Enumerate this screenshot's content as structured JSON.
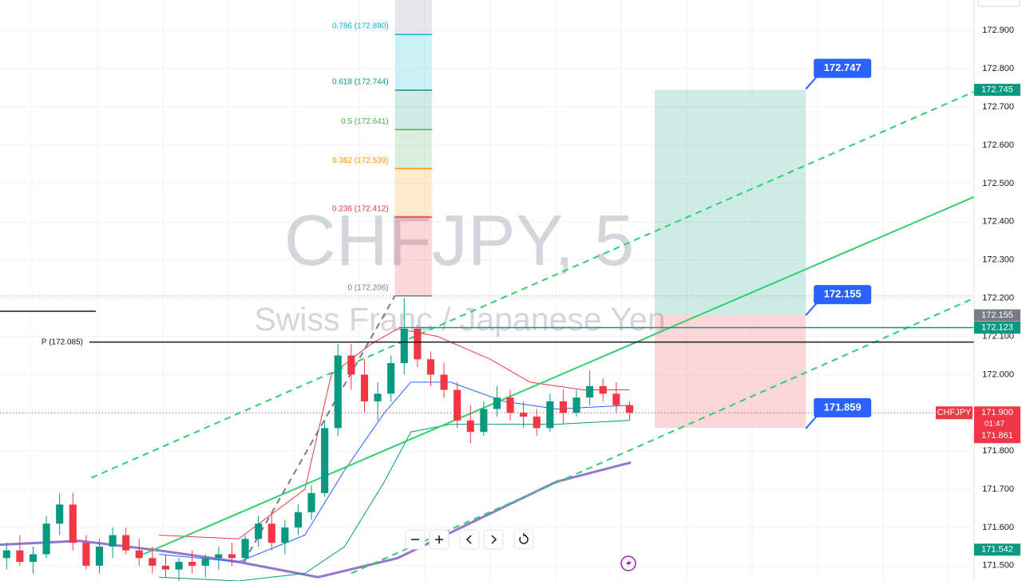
{
  "chart_data": {
    "type": "candlestick",
    "watermark": "CHFJPY, 5",
    "watermark_subtitle": "Swiss Franc / Japanese Yen",
    "symbol": "CHFJPY",
    "countdown": "01:47",
    "ylim": [
      171.46,
      172.98
    ],
    "xlim": [
      0,
      73.5
    ],
    "grid": true,
    "yticks": [
      {
        "value": 171.5,
        "label": "171.500"
      },
      {
        "value": 171.6,
        "label": "171.600"
      },
      {
        "value": 171.7,
        "label": "171.700"
      },
      {
        "value": 171.8,
        "label": "171.800"
      },
      {
        "value": 171.9,
        "label": "171.900"
      },
      {
        "value": 172.0,
        "label": "172.000"
      },
      {
        "value": 172.1,
        "label": "172.100"
      },
      {
        "value": 172.2,
        "label": "172.200"
      },
      {
        "value": 172.3,
        "label": "172.300"
      },
      {
        "value": 172.4,
        "label": "172.400"
      },
      {
        "value": 172.5,
        "label": "172.500"
      },
      {
        "value": 172.6,
        "label": "172.600"
      },
      {
        "value": 172.7,
        "label": "172.700"
      },
      {
        "value": 172.8,
        "label": "172.800"
      },
      {
        "value": 172.9,
        "label": "172.900"
      }
    ],
    "up_color": "#089981",
    "down_color": "#f23645",
    "open": [
      171.52,
      171.54,
      171.51,
      171.53,
      171.61,
      171.66,
      171.56,
      171.5,
      171.55,
      171.58,
      171.54,
      171.52,
      171.5,
      171.49,
      171.51,
      171.5,
      171.52,
      171.53,
      171.52,
      171.57,
      171.61,
      171.56,
      171.6,
      171.64,
      171.69,
      171.86,
      172.05,
      172.0,
      171.93,
      171.95,
      172.03,
      172.12,
      172.04,
      172.0,
      171.96,
      171.88,
      171.85,
      171.91,
      171.94,
      171.9,
      171.89,
      171.86,
      171.93,
      171.9,
      171.94,
      171.97,
      171.95,
      171.92
    ],
    "high": [
      171.56,
      171.58,
      171.55,
      171.63,
      171.69,
      171.69,
      171.58,
      171.57,
      171.6,
      171.6,
      171.57,
      171.55,
      171.53,
      171.52,
      171.54,
      171.53,
      171.55,
      171.56,
      171.58,
      171.63,
      171.64,
      171.62,
      171.66,
      171.71,
      171.88,
      172.08,
      172.08,
      172.04,
      171.98,
      172.05,
      172.2,
      172.13,
      172.06,
      172.03,
      171.98,
      171.92,
      171.93,
      171.97,
      171.96,
      171.93,
      171.91,
      171.95,
      171.96,
      171.96,
      172.01,
      171.99,
      171.98,
      171.93
    ],
    "low": [
      171.49,
      171.5,
      171.48,
      171.52,
      171.58,
      171.54,
      171.49,
      171.48,
      171.52,
      171.53,
      171.5,
      171.48,
      171.47,
      171.46,
      171.48,
      171.47,
      171.49,
      171.5,
      171.51,
      171.55,
      171.54,
      171.53,
      171.58,
      171.62,
      171.68,
      171.84,
      171.96,
      171.9,
      171.88,
      171.93,
      172.0,
      172.02,
      171.97,
      171.94,
      171.86,
      171.82,
      171.84,
      171.89,
      171.88,
      171.86,
      171.84,
      171.85,
      171.87,
      171.89,
      171.92,
      171.93,
      171.9,
      171.88
    ],
    "close": [
      171.54,
      171.51,
      171.53,
      171.61,
      171.66,
      171.56,
      171.5,
      171.55,
      171.58,
      171.54,
      171.52,
      171.5,
      171.49,
      171.51,
      171.5,
      171.52,
      171.53,
      171.52,
      171.57,
      171.61,
      171.56,
      171.6,
      171.64,
      171.69,
      171.86,
      172.05,
      172.0,
      171.93,
      171.95,
      172.03,
      172.12,
      172.04,
      172.0,
      171.96,
      171.88,
      171.85,
      171.91,
      171.94,
      171.9,
      171.89,
      171.86,
      171.93,
      171.9,
      171.94,
      171.97,
      171.95,
      171.92,
      171.9
    ],
    "lines": [
      {
        "color": "#9575cd",
        "width": 3,
        "dash": false,
        "x": [
          0,
          6,
          12,
          18,
          24,
          30,
          36,
          42,
          47.6
        ],
        "values": [
          171.555,
          171.565,
          171.54,
          171.51,
          171.47,
          171.52,
          171.62,
          171.72,
          171.77
        ]
      },
      {
        "color": "#f23645",
        "width": 1,
        "dash": false,
        "x": [
          12,
          18,
          23,
          25,
          28,
          30,
          33,
          37,
          40,
          44,
          47.5
        ],
        "values": [
          171.58,
          171.57,
          171.7,
          172.0,
          172.08,
          172.12,
          172.1,
          172.04,
          171.98,
          171.96,
          171.96
        ]
      },
      {
        "color": "#2962ff",
        "width": 1,
        "dash": false,
        "x": [
          12,
          18,
          23,
          26,
          29,
          31,
          34,
          38,
          42,
          47.5
        ],
        "values": [
          171.53,
          171.51,
          171.58,
          171.75,
          171.9,
          171.98,
          171.98,
          171.93,
          171.91,
          171.92
        ]
      },
      {
        "color": "#089981",
        "width": 1,
        "dash": false,
        "x": [
          12,
          18,
          23,
          26,
          29,
          31,
          34,
          38,
          42,
          47.5
        ],
        "values": [
          171.47,
          171.46,
          171.48,
          171.55,
          171.72,
          171.85,
          171.87,
          171.87,
          171.87,
          171.88
        ]
      },
      {
        "color": "#2fd06e",
        "width": 2,
        "dash": false,
        "x": [
          10.8,
          73.5
        ],
        "values": [
          171.53,
          172.465
        ]
      },
      {
        "color": "#2fd06e",
        "width": 2,
        "dash": true,
        "x": [
          6.9,
          73.5
        ],
        "values": [
          171.73,
          172.74
        ]
      },
      {
        "color": "#2fd06e",
        "width": 2,
        "dash": true,
        "x": [
          26.5,
          73.5
        ],
        "values": [
          171.48,
          172.2
        ]
      },
      {
        "color": "#787b86",
        "width": 2,
        "dash": true,
        "x": [
          18.4,
          29.8
        ],
        "values": [
          171.51,
          172.206
        ]
      }
    ],
    "fib": {
      "x": [
        29.8,
        32.6
      ],
      "levels": [
        {
          "label": "0 (172.206)",
          "value": 172.206,
          "color": "#787b86"
        },
        {
          "label": "0.236 (172.412)",
          "value": 172.412,
          "color": "#f23645"
        },
        {
          "label": "0.382 (172.539)",
          "value": 172.539,
          "color": "#ff9800"
        },
        {
          "label": "0.5 (172.641)",
          "value": 172.641,
          "color": "#4caf50"
        },
        {
          "label": "0.618 (172.744)",
          "value": 172.744,
          "color": "#089981"
        },
        {
          "label": "0.786 (172.890)",
          "value": 172.89,
          "color": "#00bcd4"
        }
      ]
    },
    "pivot": {
      "label": "P (172.085)",
      "value": 172.085
    },
    "position": {
      "x": [
        49.4,
        60.8
      ],
      "target": 172.745,
      "entry": 172.155,
      "stop": 171.861
    },
    "callouts": [
      172.747,
      172.155,
      171.859
    ],
    "price_badges": [
      {
        "value": 172.745,
        "color": "#089981"
      },
      {
        "value": 172.155,
        "color": "#787b86"
      },
      {
        "value": 172.123,
        "color": "#089981",
        "line_from": 30.1
      },
      {
        "value": 171.542,
        "color": "#089981"
      }
    ],
    "last_price": {
      "value": 171.9,
      "label": "171.900",
      "stop_badge": 171.861,
      "color": "#f23645"
    }
  }
}
